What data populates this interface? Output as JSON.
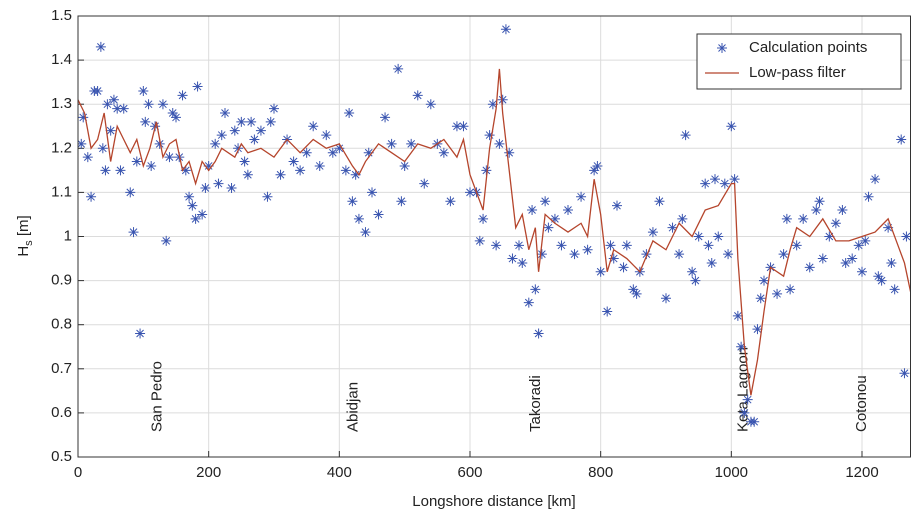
{
  "chart_data": {
    "type": "combo",
    "xlabel": "Longshore distance [km]",
    "ylabel_parts": [
      "H",
      "s",
      " [m]"
    ],
    "xlim": [
      0,
      1275
    ],
    "ylim": [
      0.5,
      1.5
    ],
    "xticks": [
      0,
      200,
      400,
      600,
      800,
      1000,
      1200
    ],
    "yticks": [
      0.5,
      0.6,
      0.7,
      0.8,
      0.9,
      1,
      1.1,
      1.2,
      1.3,
      1.4,
      1.5
    ],
    "grid": true,
    "legend": "upper right",
    "annotations": [
      {
        "text": "San Pedro",
        "x": 122
      },
      {
        "text": "Abidjan",
        "x": 422
      },
      {
        "text": "Takoradi",
        "x": 701
      },
      {
        "text": "Keta Lagoon",
        "x": 1019
      },
      {
        "text": "Cotonou",
        "x": 1200
      }
    ],
    "series": [
      {
        "name": "Calculation points",
        "type": "scatter",
        "color": "#3a55b0",
        "x": [
          5,
          8,
          15,
          20,
          25,
          30,
          35,
          38,
          42,
          45,
          50,
          55,
          60,
          65,
          70,
          80,
          85,
          90,
          95,
          100,
          103,
          108,
          112,
          118,
          125,
          130,
          135,
          140,
          145,
          150,
          155,
          160,
          165,
          170,
          175,
          180,
          183,
          190,
          195,
          200,
          210,
          215,
          220,
          225,
          235,
          240,
          245,
          250,
          255,
          260,
          265,
          270,
          280,
          290,
          295,
          300,
          310,
          320,
          330,
          340,
          350,
          360,
          370,
          380,
          390,
          400,
          410,
          415,
          420,
          425,
          430,
          440,
          445,
          450,
          460,
          470,
          480,
          490,
          495,
          500,
          510,
          520,
          530,
          540,
          550,
          560,
          570,
          580,
          590,
          600,
          610,
          615,
          620,
          625,
          630,
          635,
          640,
          645,
          650,
          655,
          660,
          665,
          675,
          680,
          690,
          695,
          700,
          705,
          710,
          715,
          720,
          730,
          740,
          750,
          760,
          770,
          780,
          790,
          795,
          800,
          810,
          815,
          820,
          825,
          835,
          840,
          850,
          855,
          860,
          870,
          880,
          890,
          900,
          910,
          920,
          925,
          930,
          940,
          945,
          950,
          960,
          965,
          970,
          975,
          980,
          990,
          995,
          1000,
          1005,
          1010,
          1015,
          1020,
          1025,
          1030,
          1035,
          1040,
          1045,
          1050,
          1060,
          1070,
          1080,
          1085,
          1090,
          1100,
          1110,
          1120,
          1130,
          1135,
          1140,
          1150,
          1160,
          1170,
          1175,
          1185,
          1195,
          1200,
          1205,
          1210,
          1220,
          1225,
          1230,
          1240,
          1245,
          1250,
          1260,
          1265,
          1268
        ],
        "values": [
          1.21,
          1.27,
          1.18,
          1.09,
          1.33,
          1.33,
          1.43,
          1.2,
          1.15,
          1.3,
          1.24,
          1.31,
          1.29,
          1.15,
          1.29,
          1.1,
          1.01,
          1.17,
          0.78,
          1.33,
          1.26,
          1.3,
          1.16,
          1.25,
          1.21,
          1.3,
          0.99,
          1.18,
          1.28,
          1.27,
          1.18,
          1.32,
          1.15,
          1.09,
          1.07,
          1.04,
          1.34,
          1.05,
          1.11,
          1.16,
          1.21,
          1.12,
          1.23,
          1.28,
          1.11,
          1.24,
          1.2,
          1.26,
          1.17,
          1.14,
          1.26,
          1.22,
          1.24,
          1.09,
          1.26,
          1.29,
          1.14,
          1.22,
          1.17,
          1.15,
          1.19,
          1.25,
          1.16,
          1.23,
          1.19,
          1.2,
          1.15,
          1.28,
          1.08,
          1.14,
          1.04,
          1.01,
          1.19,
          1.1,
          1.05,
          1.27,
          1.21,
          1.38,
          1.08,
          1.16,
          1.21,
          1.32,
          1.12,
          1.3,
          1.21,
          1.19,
          1.08,
          1.25,
          1.25,
          1.1,
          1.1,
          0.99,
          1.04,
          1.15,
          1.23,
          1.3,
          0.98,
          1.21,
          1.31,
          1.47,
          1.19,
          0.95,
          0.98,
          0.94,
          0.85,
          1.06,
          0.88,
          0.78,
          0.96,
          1.08,
          1.02,
          1.04,
          0.98,
          1.06,
          0.96,
          1.09,
          0.97,
          1.15,
          1.16,
          0.92,
          0.83,
          0.98,
          0.95,
          1.07,
          0.93,
          0.98,
          0.88,
          0.87,
          0.92,
          0.96,
          1.01,
          1.08,
          0.86,
          1.02,
          0.96,
          1.04,
          1.23,
          0.92,
          0.9,
          1.0,
          1.12,
          0.98,
          0.94,
          1.13,
          1.0,
          1.12,
          0.96,
          1.25,
          1.13,
          0.82,
          0.75,
          0.6,
          0.63,
          0.58,
          0.58,
          0.79,
          0.86,
          0.9,
          0.93,
          0.87,
          0.96,
          1.04,
          0.88,
          0.98,
          1.04,
          0.93,
          1.06,
          1.08,
          0.95,
          1.0,
          1.03,
          1.06,
          0.94,
          0.95,
          0.98,
          0.92,
          0.99,
          1.09,
          1.13,
          0.91,
          0.9,
          1.02,
          0.94,
          0.88,
          1.22,
          0.69,
          1.0
        ]
      },
      {
        "name": "Low-pass filter",
        "type": "line",
        "color": "#b5452c",
        "x": [
          0,
          10,
          20,
          30,
          40,
          50,
          60,
          70,
          80,
          90,
          100,
          110,
          120,
          130,
          140,
          150,
          160,
          170,
          180,
          190,
          200,
          210,
          220,
          240,
          250,
          260,
          280,
          300,
          320,
          340,
          360,
          380,
          400,
          420,
          430,
          440,
          460,
          480,
          500,
          520,
          540,
          560,
          580,
          590,
          600,
          610,
          620,
          630,
          640,
          645,
          650,
          660,
          670,
          680,
          690,
          700,
          705,
          715,
          730,
          750,
          770,
          780,
          790,
          800,
          810,
          820,
          840,
          860,
          880,
          900,
          920,
          940,
          960,
          980,
          1000,
          1005,
          1010,
          1020,
          1030,
          1040,
          1050,
          1060,
          1080,
          1090,
          1100,
          1120,
          1140,
          1160,
          1180,
          1200,
          1220,
          1240,
          1255,
          1265,
          1275
        ],
        "values": [
          1.31,
          1.28,
          1.2,
          1.22,
          1.28,
          1.17,
          1.25,
          1.22,
          1.19,
          1.22,
          1.16,
          1.2,
          1.26,
          1.18,
          1.21,
          1.22,
          1.15,
          1.17,
          1.12,
          1.17,
          1.15,
          1.17,
          1.2,
          1.18,
          1.21,
          1.19,
          1.2,
          1.18,
          1.22,
          1.19,
          1.22,
          1.2,
          1.21,
          1.16,
          1.14,
          1.17,
          1.21,
          1.19,
          1.17,
          1.21,
          1.2,
          1.22,
          1.18,
          1.22,
          1.14,
          1.1,
          1.06,
          1.2,
          1.29,
          1.38,
          1.28,
          1.15,
          1.02,
          1.05,
          0.97,
          1.02,
          0.92,
          1.05,
          1.03,
          1.01,
          1.03,
          1.0,
          1.13,
          1.05,
          0.92,
          0.97,
          0.95,
          0.92,
          0.99,
          0.97,
          1.03,
          1.0,
          1.06,
          1.07,
          1.12,
          1.12,
          0.95,
          0.75,
          0.64,
          0.72,
          0.83,
          0.93,
          0.91,
          0.97,
          1.02,
          1.0,
          1.04,
          0.99,
          0.99,
          1.0,
          1.01,
          1.04,
          0.98,
          0.94,
          0.87
        ]
      }
    ]
  }
}
